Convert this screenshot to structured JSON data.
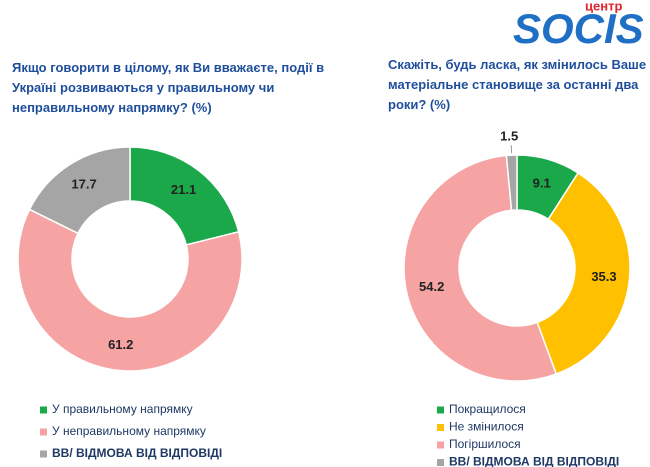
{
  "logo": {
    "small": "центр",
    "name": "SOCIS"
  },
  "chart_data": [
    {
      "type": "donut",
      "title": "Якщо говорити в цілому, як Ви вважаєте, події в Україні розвиваються у правильному чи неправильному напрямку? (%)",
      "categories": [
        "У правильному напрямку",
        "У неправильному напрямку",
        "ВВ/ ВІДМОВА ВІД ВІДПОВІДІ"
      ],
      "values": [
        21.1,
        61.2,
        17.7
      ],
      "colors": [
        "#1ba84a",
        "#f6a3a3",
        "#a5a5a5"
      ]
    },
    {
      "type": "donut",
      "title": "Скажіть, будь ласка, як змінилось Ваше матеріальне становище за останні два роки? (%)",
      "categories": [
        "Покращилося",
        "Не змінилося",
        "Погіршилося",
        "ВВ/ ВІДМОВА ВІД ВІДПОВІДІ"
      ],
      "values": [
        9.1,
        35.3,
        54.2,
        1.5
      ],
      "colors": [
        "#1ba84a",
        "#ffc000",
        "#f6a3a3",
        "#a5a5a5"
      ]
    }
  ]
}
